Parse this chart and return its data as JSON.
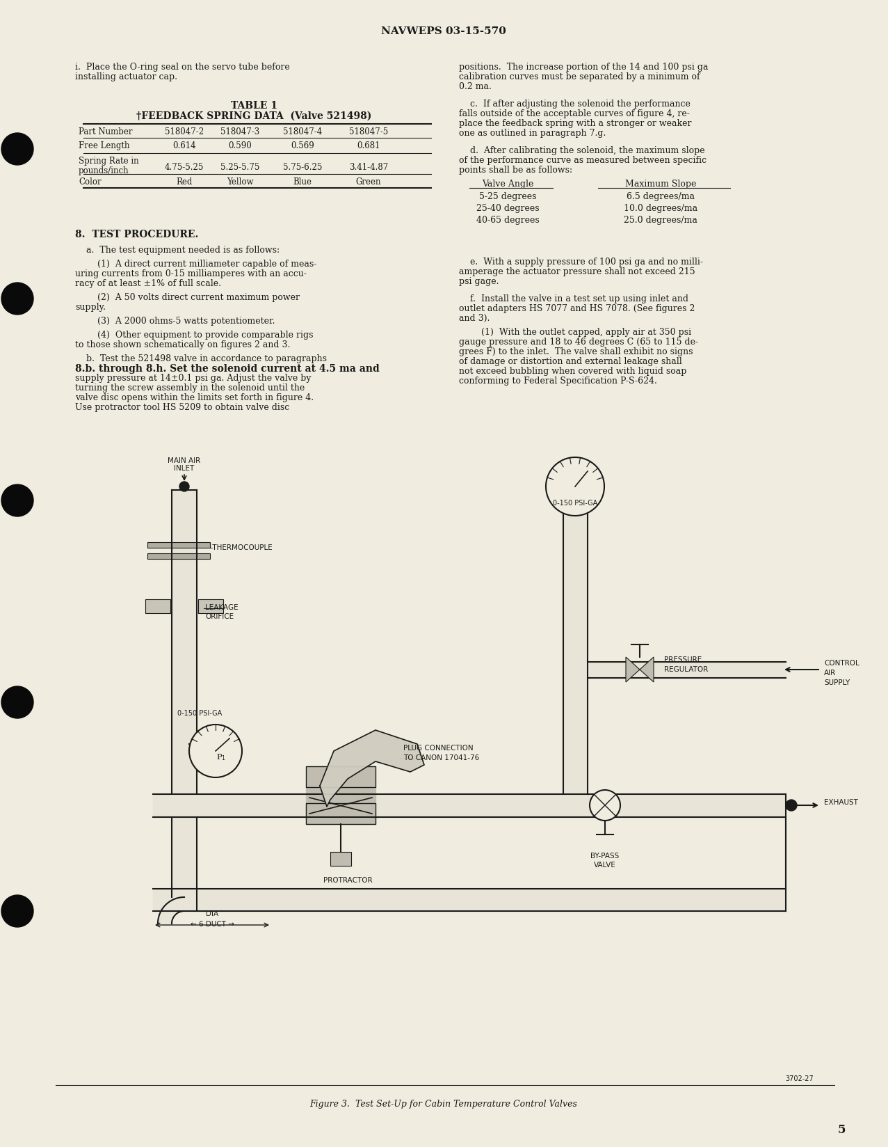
{
  "bg_color": "#f0ede0",
  "text_color": "#1a1a1a",
  "header": "NAVWEPS 03-15-570",
  "page_number": "5",
  "table_title": "TABLE 1",
  "table_subtitle": "†FEEDBACK SPRING DATA  (Valve 521498)",
  "table_headers": [
    "Part Number",
    "518047-2",
    "518047-3",
    "518047-4",
    "518047-5"
  ],
  "table_row1": [
    "Free Length",
    "0.614",
    "0.590",
    "0.569",
    "0.681"
  ],
  "table_row2_label1": "Spring Rate in",
  "table_row2_label2": "pounds/inch",
  "table_row2_vals": [
    "4.75-5.25",
    "5.25-5.75",
    "5.75-6.25",
    "3.41-4.87"
  ],
  "table_row3": [
    "Color",
    "Red",
    "Yellow",
    "Blue",
    "Green"
  ],
  "valve_angle_col1": [
    "5-25 degrees",
    "25-40 degrees",
    "40-65 degrees"
  ],
  "valve_angle_col2": [
    "6.5 degrees/ma",
    "10.0 degrees/ma",
    "25.0 degrees/ma"
  ],
  "figure_caption": "Figure 3.  Test Set-Up for Cabin Temperature Control Valves",
  "figure_ref": "3702-27",
  "left_lines": [
    [
      "i.  Place the O-ring seal on the servo tube before",
      90
    ],
    [
      "installing actuator cap.",
      104
    ],
    [
      "8.  TEST PROCEDURE.",
      330
    ],
    [
      "    a.  The test equipment needed is as follows:",
      353
    ],
    [
      "        (1)  A direct current milliameter capable of meas-",
      373
    ],
    [
      "uring currents from 0-15 milliamperes with an accu-",
      387
    ],
    [
      "racy of at least ±1% of full scale.",
      401
    ],
    [
      "        (2)  A 50 volts direct current maximum power",
      421
    ],
    [
      "supply.",
      435
    ],
    [
      "        (3)  A 2000 ohms-5 watts potentiometer.",
      455
    ],
    [
      "        (4)  Other equipment to provide comparable rigs",
      475
    ],
    [
      "to those shown schematically on figures 2 and 3.",
      489
    ],
    [
      "    b.  Test the 521498 valve in accordance to paragraphs",
      509
    ],
    [
      "8.b. through 8.h. Set the solenoid current at 4.5 ma and",
      523
    ],
    [
      "supply pressure at 14±0.1 psi ga. Adjust the valve by",
      537
    ],
    [
      "turning the screw assembly in the solenoid until the",
      551
    ],
    [
      "valve disc opens within the limits set forth in figure 4.",
      565
    ],
    [
      "Use protractor tool HS 5209 to obtain valve disc",
      579
    ]
  ],
  "right_lines": [
    [
      "positions.  The increase portion of the 14 and 100 psi ga",
      90
    ],
    [
      "calibration curves must be separated by a minimum of",
      104
    ],
    [
      "0.2 ma.",
      118
    ],
    [
      "    c.  If after adjusting the solenoid the performance",
      143
    ],
    [
      "falls outside of the acceptable curves of figure 4, re-",
      157
    ],
    [
      "place the feedback spring with a stronger or weaker",
      171
    ],
    [
      "one as outlined in paragraph 7.g.",
      185
    ],
    [
      "    d.  After calibrating the solenoid, the maximum slope",
      210
    ],
    [
      "of the performance curve as measured between specific",
      224
    ],
    [
      "points shall be as follows:",
      238
    ],
    [
      "    e.  With a supply pressure of 100 psi ga and no milli-",
      370
    ],
    [
      "amperage the actuator pressure shall not exceed 215",
      384
    ],
    [
      "psi gage.",
      398
    ],
    [
      "    f.  Install the valve in a test set up using inlet and",
      423
    ],
    [
      "outlet adapters HS 7077 and HS 7078. (See figures 2",
      437
    ],
    [
      "and 3).",
      451
    ],
    [
      "        (1)  With the outlet capped, apply air at 350 psi",
      471
    ],
    [
      "gauge pressure and 18 to 46 degrees C (65 to 115 de-",
      485
    ],
    [
      "grees F) to the inlet.  The valve shall exhibit no signs",
      499
    ],
    [
      "of damage or distortion and external leakage shall",
      513
    ],
    [
      "not exceed bubbling when covered with liquid soap",
      527
    ],
    [
      "conforming to Federal Specification P-S-624.",
      541
    ]
  ]
}
